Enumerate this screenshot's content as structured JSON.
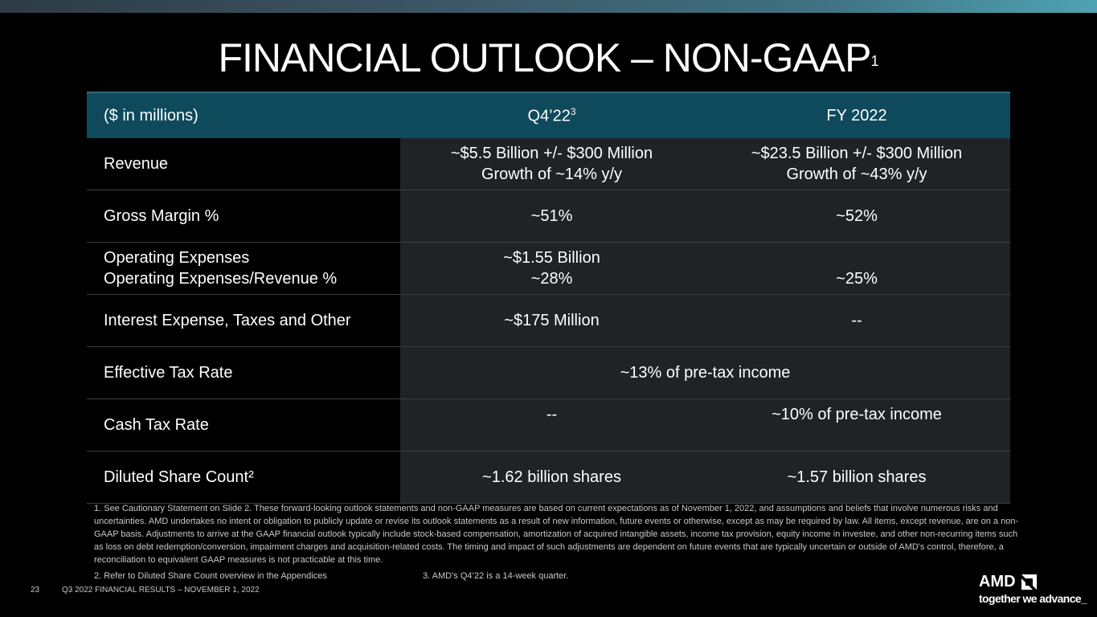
{
  "title": {
    "text": "FINANCIAL OUTLOOK – NON-GAAP",
    "superscript": "1"
  },
  "table": {
    "header": {
      "col1": "($ in millions)",
      "col2": "Q4’22",
      "col2_sup": "3",
      "col3": "FY 2022"
    },
    "rows": [
      {
        "label": "Revenue",
        "q4_line1": "~$5.5 Billion +/- $300 Million",
        "q4_line2": "Growth of ~14% y/y",
        "fy_line1": "~$23.5 Billion +/- $300 Million",
        "fy_line2": "Growth of ~43% y/y"
      },
      {
        "label": "Gross Margin %",
        "q4": "~51%",
        "fy": "~52%"
      },
      {
        "label_line1": "Operating Expenses",
        "label_line2": "Operating Expenses/Revenue %",
        "q4_line1": "~$1.55 Billion",
        "q4_line2": "~28%",
        "fy": "~25%"
      },
      {
        "label": "Interest Expense, Taxes and Other",
        "q4": "~$175 Million",
        "fy": "--"
      },
      {
        "label": "Effective Tax Rate",
        "merged": "~13% of pre-tax income"
      },
      {
        "label": "Cash Tax Rate",
        "q4": "--",
        "fy": "~10% of pre-tax income"
      },
      {
        "label": "Diluted Share Count²",
        "q4": "~1.62 billion shares",
        "fy": "~1.57 billion shares"
      }
    ]
  },
  "footnotes": {
    "note1": "1.  See Cautionary Statement on Slide 2. These forward-looking outlook statements and non-GAAP measures are based on current expectations as of November 1, 2022, and assumptions and beliefs that involve numerous risks and uncertainties. AMD undertakes no intent or obligation to publicly update or revise its outlook statements as a result of new information, future events or otherwise, except as may be required by law. All items, except revenue, are on a non-GAAP basis. Adjustments to arrive at the GAAP financial outlook typically include stock-based compensation, amortization of acquired intangible assets, income tax provision, equity income in investee, and other non-recurring items such as loss on debt redemption/conversion, impairment charges and acquisition-related costs. The timing and impact of such adjustments are dependent on future events that are typically uncertain or outside of AMD's control, therefore, a reconciliation to equivalent GAAP measures is not practicable at this time.",
    "note2": "2.  Refer to Diluted Share Count overview in the Appendices",
    "note3": "3. AMD’s Q4’22 is a 14-week quarter."
  },
  "footer": {
    "page_number": "23",
    "text": "Q3 2022 FINANCIAL RESULTS – NOVEMBER 1, 2022",
    "logo_text": "AMD",
    "tagline": "together we advance_"
  },
  "colors": {
    "header_bg": "#0e4a5c",
    "cell_bg": "#1f2326",
    "top_bar_start": "#2c3b45",
    "top_bar_end": "#4fa3b3"
  }
}
